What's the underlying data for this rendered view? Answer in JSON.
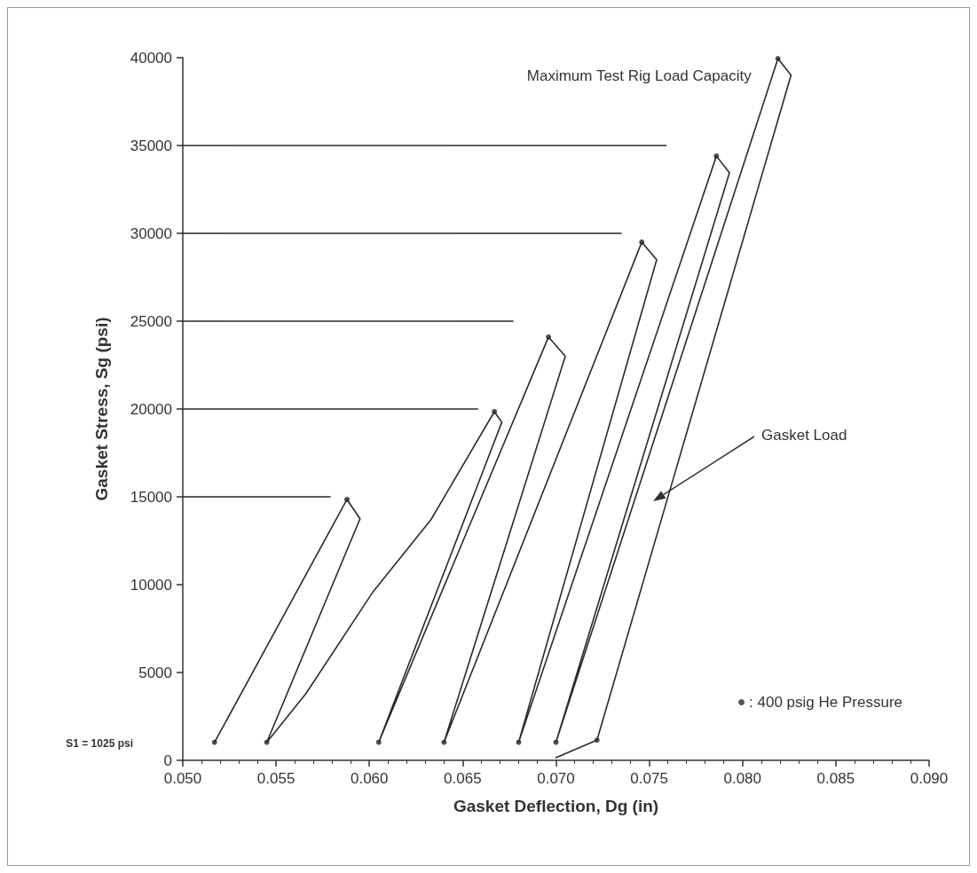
{
  "chart_data": {
    "type": "line",
    "xlabel": "Gasket Deflection, Dg (in)",
    "ylabel": "Gasket Stress, Sg (psi)",
    "xlim": [
      0.05,
      0.09
    ],
    "xticks": [
      {
        "value": 0.05,
        "label": "0.050"
      },
      {
        "value": 0.055,
        "label": "0.055"
      },
      {
        "value": 0.06,
        "label": "0.060"
      },
      {
        "value": 0.065,
        "label": "0.065"
      },
      {
        "value": 0.07,
        "label": "0.070"
      },
      {
        "value": 0.075,
        "label": "0.075"
      },
      {
        "value": 0.08,
        "label": "0.080"
      },
      {
        "value": 0.085,
        "label": "0.085"
      },
      {
        "value": 0.09,
        "label": "0.090"
      }
    ],
    "ylim": [
      0,
      40000
    ],
    "yticks": [
      0,
      5000,
      10000,
      15000,
      20000,
      25000,
      30000,
      35000,
      40000
    ],
    "grid": false,
    "legend": "bottom right",
    "series": [
      {
        "color": "#2a2a2a",
        "x": [
          0.0517,
          0.0588,
          0.0595,
          0.0545,
          0.0566,
          0.0602,
          0.0633,
          0.0667,
          0.0671,
          0.0605,
          0.0696,
          0.0705,
          0.064,
          0.0746,
          0.0754,
          0.068,
          0.0786,
          0.0793,
          0.07,
          0.0819,
          0.0826,
          0.0722,
          0.07
        ],
        "values": [
          1025,
          14850,
          13750,
          1025,
          3800,
          9600,
          13700,
          19850,
          19250,
          1025,
          24100,
          23000,
          1025,
          29500,
          28500,
          1025,
          34400,
          33450,
          1025,
          39950,
          39000,
          1150,
          150
        ]
      },
      {
        "color": "#2a2a2a",
        "x": [
          0.05,
          0.0579
        ],
        "values": [
          15000,
          15000
        ]
      },
      {
        "color": "#2a2a2a",
        "x": [
          0.05,
          0.0658
        ],
        "values": [
          20000,
          20000
        ]
      },
      {
        "color": "#2a2a2a",
        "x": [
          0.05,
          0.0677
        ],
        "values": [
          25000,
          25000
        ]
      },
      {
        "color": "#2a2a2a",
        "x": [
          0.05,
          0.0735
        ],
        "values": [
          30000,
          30000
        ]
      },
      {
        "color": "#2a2a2a",
        "x": [
          0.05,
          0.0759
        ],
        "values": [
          35000,
          35000
        ]
      },
      {
        "type": "scatter",
        "marker": "circle",
        "name": ": 400 psig He Pressure",
        "color": "#2a2a2a",
        "x": [
          0.0517,
          0.0588,
          0.0545,
          0.0667,
          0.0605,
          0.0696,
          0.064,
          0.0746,
          0.068,
          0.0786,
          0.07,
          0.0819,
          0.0722
        ],
        "values": [
          1025,
          14850,
          1025,
          19850,
          1025,
          24100,
          1025,
          29500,
          1025,
          34400,
          1025,
          39950,
          1150
        ]
      }
    ],
    "annotations": [
      {
        "text": "Maximum Test Rig Load Capacity",
        "x": 0.0819,
        "y": 40000
      },
      "Gasket Load",
      "S1 = 1025 psi"
    ]
  }
}
